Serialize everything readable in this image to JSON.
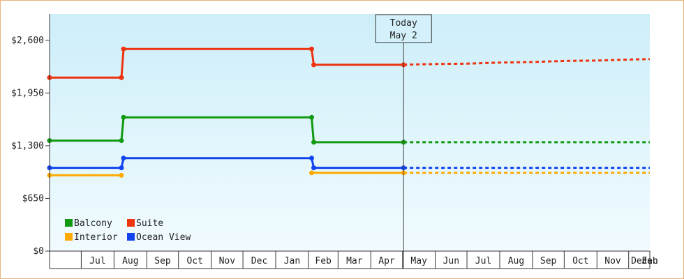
{
  "chart_data": {
    "type": "line",
    "title": "",
    "xlabel": "",
    "ylabel": "",
    "ylim": [
      0,
      2925
    ],
    "yticks": [
      {
        "value": 0,
        "label": "$0"
      },
      {
        "value": 650,
        "label": "$650"
      },
      {
        "value": 1300,
        "label": "$1,300"
      },
      {
        "value": 1950,
        "label": "$1,950"
      },
      {
        "value": 2600,
        "label": "$2,600"
      }
    ],
    "months": [
      "Jul",
      "Aug",
      "Sep",
      "Oct",
      "Nov",
      "Dec",
      "Jan",
      "Feb",
      "Mar",
      "Apr",
      "May",
      "Jun",
      "Jul",
      "Aug",
      "Sep",
      "Oct",
      "Nov",
      "Dec",
      "Jan",
      "Feb"
    ],
    "x_start": "2024-06-01",
    "x_end": "2025-12-21",
    "today": {
      "line1": "Today",
      "line2": "May 2",
      "date": "2025-05-02"
    },
    "grid": false,
    "legend": "bottom-left",
    "background_gradient": [
      "#cdeef9",
      "#f1fbfe"
    ],
    "series": [
      {
        "name": "Balcony",
        "color": "#119911",
        "history": [
          [
            "2024-06-01",
            1363
          ],
          [
            "2024-08-08",
            1363
          ],
          [
            "2024-08-10",
            1650
          ],
          [
            "2025-02-04",
            1650
          ],
          [
            "2025-02-06",
            1343
          ],
          [
            "2025-05-02",
            1343
          ]
        ],
        "forecast": [
          [
            "2025-05-02",
            1343
          ],
          [
            "2025-12-21",
            1343
          ]
        ]
      },
      {
        "name": "Suite",
        "color": "#ee3311",
        "history": [
          [
            "2024-06-01",
            2140
          ],
          [
            "2024-08-08",
            2140
          ],
          [
            "2024-08-10",
            2493
          ],
          [
            "2025-02-04",
            2493
          ],
          [
            "2025-02-06",
            2298
          ],
          [
            "2025-05-02",
            2298
          ]
        ],
        "forecast": [
          [
            "2025-05-02",
            2298
          ],
          [
            "2025-06-01",
            2308
          ],
          [
            "2025-07-01",
            2312
          ],
          [
            "2025-08-01",
            2325
          ],
          [
            "2025-09-01",
            2332
          ],
          [
            "2025-10-01",
            2345
          ],
          [
            "2025-11-01",
            2350
          ],
          [
            "2025-12-01",
            2362
          ],
          [
            "2025-12-21",
            2368
          ]
        ]
      },
      {
        "name": "Interior",
        "color": "#ffaa00",
        "history": [
          [
            "2024-06-01",
            935
          ],
          [
            "2024-08-08",
            935
          ]
        ],
        "history2": [
          [
            "2025-02-04",
            965
          ],
          [
            "2025-05-02",
            965
          ]
        ],
        "forecast": [
          [
            "2025-05-02",
            965
          ],
          [
            "2025-12-21",
            965
          ]
        ]
      },
      {
        "name": "Ocean View",
        "color": "#1144ee",
        "history": [
          [
            "2024-06-01",
            1027
          ],
          [
            "2024-08-08",
            1027
          ],
          [
            "2024-08-10",
            1147
          ],
          [
            "2025-02-04",
            1147
          ],
          [
            "2025-02-06",
            1027
          ],
          [
            "2025-05-02",
            1027
          ]
        ],
        "forecast": [
          [
            "2025-05-02",
            1027
          ],
          [
            "2025-12-21",
            1027
          ]
        ]
      }
    ]
  }
}
